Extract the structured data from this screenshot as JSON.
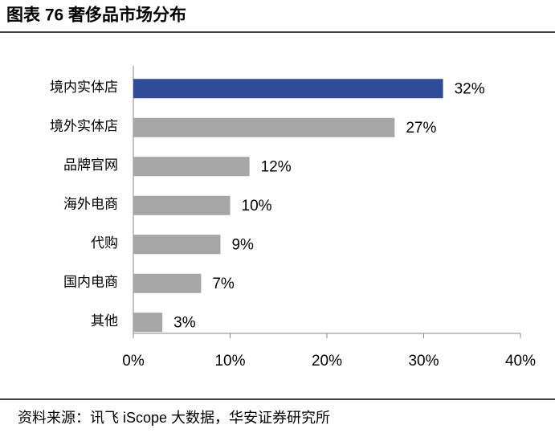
{
  "chart_data": {
    "type": "bar",
    "orientation": "horizontal",
    "title": "图表 76 奢侈品市场分布",
    "source": "资料来源：讯飞 iScope 大数据，华安证券研究所",
    "categories": [
      "境内实体店",
      "境外实体店",
      "品牌官网",
      "海外电商",
      "代购",
      "国内电商",
      "其他"
    ],
    "values": [
      32,
      27,
      12,
      10,
      9,
      7,
      3
    ],
    "value_labels": [
      "32%",
      "27%",
      "12%",
      "10%",
      "9%",
      "7%",
      "3%"
    ],
    "colors": [
      "#2e4d96",
      "#a6a6a6",
      "#a6a6a6",
      "#a6a6a6",
      "#a6a6a6",
      "#a6a6a6",
      "#a6a6a6"
    ],
    "xlim": [
      0,
      40
    ],
    "xticks": [
      {
        "value": 0,
        "label": "0%"
      },
      {
        "value": 10,
        "label": "10%"
      },
      {
        "value": 20,
        "label": "20%"
      },
      {
        "value": 30,
        "label": "30%"
      },
      {
        "value": 40,
        "label": "40%"
      }
    ]
  }
}
